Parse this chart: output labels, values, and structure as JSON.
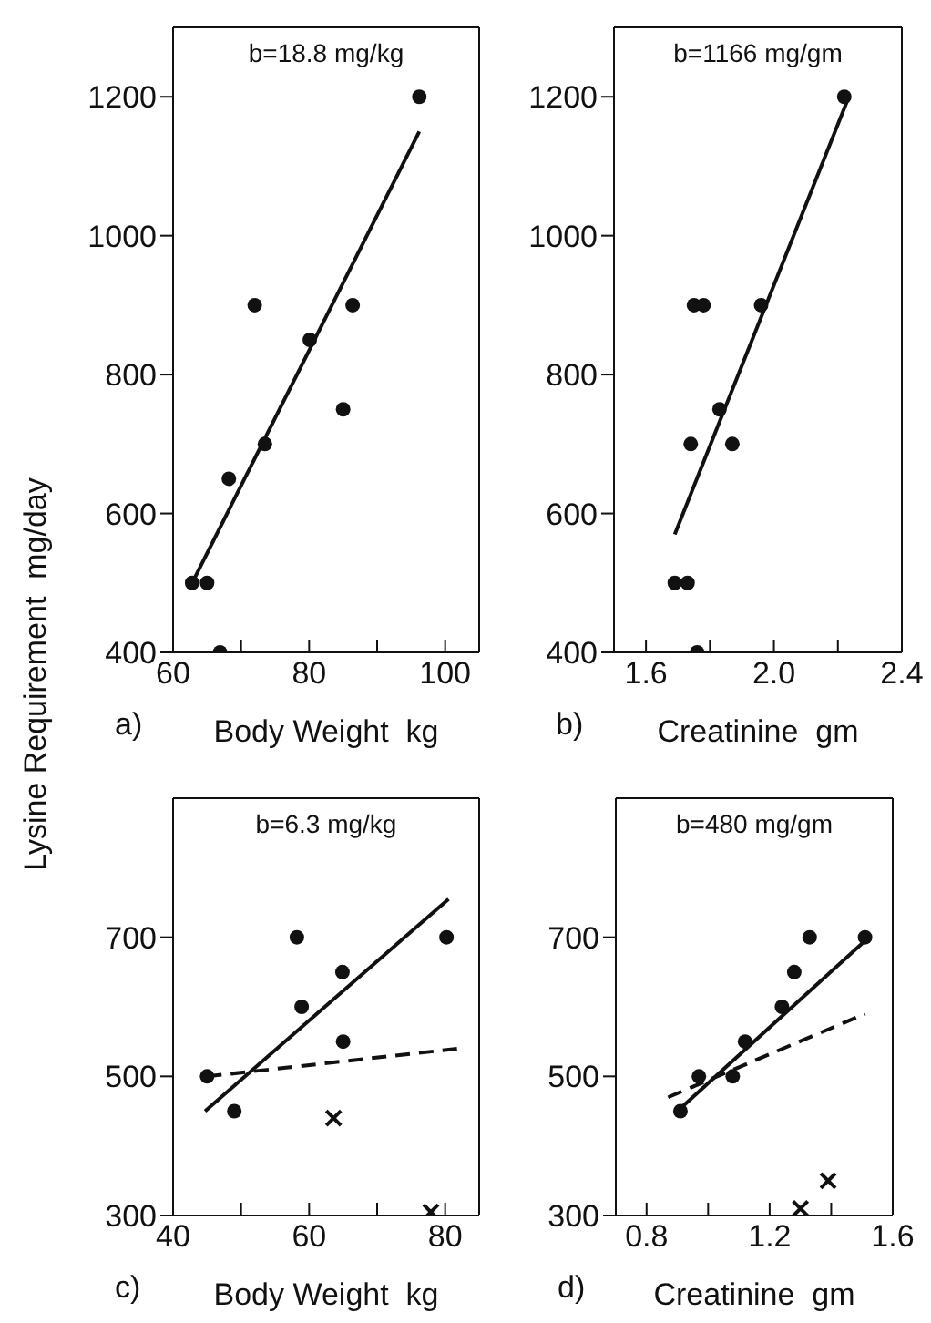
{
  "chart_data": [
    {
      "type": "scatter",
      "ylabel": "Lysine Requirement  mg/day",
      "xlabel": "Body Weight  kg",
      "annotations": [
        "b=18.8 mg/kg",
        "a)"
      ],
      "xlim": [
        60,
        105
      ],
      "xticks": [
        60,
        {
          "value": 70,
          "label": null
        },
        80,
        {
          "value": 90,
          "label": null
        },
        100
      ],
      "ylim": [
        400,
        1300
      ],
      "yticks": [
        400,
        600,
        800,
        1000,
        1200
      ],
      "series": [
        {
          "marker": "circle",
          "color": "#111111",
          "x": [
            62.8,
            65,
            66.9,
            68.2,
            72,
            73.5,
            80.1,
            85,
            86.4,
            96.2
          ],
          "values": [
            500,
            500,
            400,
            650,
            900,
            700,
            850,
            750,
            900,
            1200
          ]
        },
        {
          "type": "line",
          "line_style": "solid",
          "color": "#111111",
          "x": [
            62.8,
            96.2
          ],
          "values": [
            500,
            1150
          ]
        }
      ]
    },
    {
      "type": "scatter",
      "xlabel": "Creatinine  gm",
      "annotations": [
        "b=1166 mg/gm",
        "b)"
      ],
      "xlim": [
        1.5,
        2.4
      ],
      "xticks": [
        1.6,
        {
          "value": 1.8,
          "label": null
        },
        {
          "value": 2,
          "label": "2.0"
        },
        {
          "value": 2.2,
          "label": null
        },
        2.4
      ],
      "ylim": [
        400,
        1300
      ],
      "yticks": [
        400,
        600,
        800,
        1000,
        1200
      ],
      "series": [
        {
          "marker": "circle",
          "color": "#111111",
          "x": [
            1.69,
            1.73,
            1.76,
            1.74,
            1.75,
            1.78,
            1.83,
            1.87,
            1.96,
            2.22
          ],
          "values": [
            500,
            500,
            400,
            700,
            900,
            900,
            750,
            700,
            900,
            1200
          ]
        },
        {
          "type": "line",
          "line_style": "solid",
          "color": "#111111",
          "x": [
            1.69,
            2.23
          ],
          "values": [
            570,
            1195
          ]
        }
      ]
    },
    {
      "type": "scatter",
      "xlabel": "Body Weight  kg",
      "annotations": [
        "b=6.3 mg/kg",
        "c)"
      ],
      "xlim": [
        40,
        85
      ],
      "xticks": [
        40,
        {
          "value": 50,
          "label": null
        },
        60,
        {
          "value": 70,
          "label": null
        },
        80
      ],
      "ylim": [
        300,
        900
      ],
      "yticks": [
        300,
        500,
        700
      ],
      "series": [
        {
          "marker": "circle",
          "color": "#111111",
          "x": [
            45,
            49,
            58.2,
            58.9,
            64.9,
            65,
            80.2
          ],
          "values": [
            500,
            450,
            700,
            600,
            650,
            550,
            700
          ]
        },
        {
          "type": "scatter",
          "marker": "cross",
          "color": "#111111",
          "x": [
            63.6,
            77.9
          ],
          "values": [
            440,
            305
          ]
        },
        {
          "type": "line",
          "line_style": "solid",
          "color": "#111111",
          "x": [
            44.7,
            80.5
          ],
          "values": [
            450,
            755
          ]
        },
        {
          "type": "line",
          "line_style": "dashed",
          "color": "#111111",
          "x": [
            45,
            82
          ],
          "values": [
            500,
            540
          ]
        }
      ]
    },
    {
      "type": "scatter",
      "xlabel": "Creatinine  gm",
      "annotations": [
        "b=480 mg/gm",
        "d)"
      ],
      "xlim": [
        0.7,
        1.6
      ],
      "xticks": [
        0.8,
        {
          "value": 1.0,
          "label": null
        },
        1.2,
        {
          "value": 1.4,
          "label": null
        },
        1.6
      ],
      "ylim": [
        300,
        900
      ],
      "yticks": [
        300,
        500,
        700
      ],
      "series": [
        {
          "marker": "circle",
          "color": "#111111",
          "x": [
            0.91,
            0.97,
            1.08,
            1.12,
            1.24,
            1.28,
            1.33,
            1.51
          ],
          "values": [
            450,
            500,
            500,
            550,
            600,
            650,
            700,
            700
          ]
        },
        {
          "type": "scatter",
          "marker": "cross",
          "color": "#111111",
          "x": [
            1.39,
            1.3
          ],
          "values": [
            350,
            310
          ]
        },
        {
          "type": "line",
          "line_style": "solid",
          "color": "#111111",
          "x": [
            0.9,
            1.51
          ],
          "values": [
            450,
            695
          ]
        },
        {
          "type": "line",
          "line_style": "dashed",
          "color": "#111111",
          "x": [
            0.87,
            1.51
          ],
          "values": [
            470,
            590
          ]
        }
      ]
    }
  ]
}
